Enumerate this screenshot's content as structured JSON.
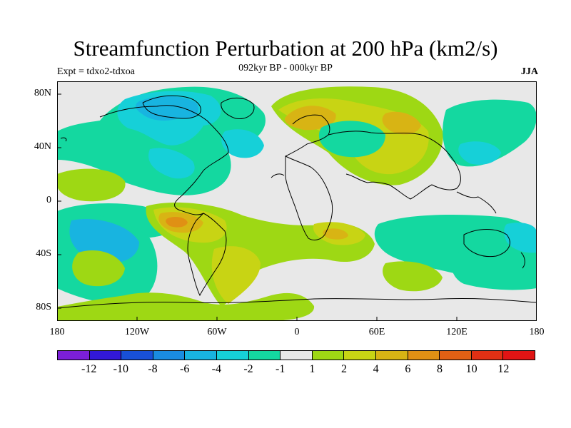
{
  "title": "Streamfunction Perturbation at 200 hPa (km2/s)",
  "subtitle": "092kyr BP - 000kyr BP",
  "left_label": "Expt = tdxo2-tdxoa",
  "right_label": "JJA",
  "lat_ticks": [
    "80N",
    "40N",
    "0",
    "40S",
    "80S"
  ],
  "lon_ticks": [
    "180",
    "120W",
    "60W",
    "0",
    "60E",
    "120E",
    "180"
  ],
  "colorbar": {
    "colors": [
      "#7b1fd8",
      "#3218d8",
      "#1850d8",
      "#1a8ce0",
      "#18b4e0",
      "#16d0d8",
      "#14d8a0",
      "#e8e8e8",
      "#9ed814",
      "#c8d414",
      "#d8b414",
      "#e09014",
      "#e06014",
      "#e03014",
      "#e01414"
    ],
    "labels": [
      "-12",
      "-10",
      "-8",
      "-6",
      "-4",
      "-2",
      "-1",
      "1",
      "2",
      "4",
      "6",
      "8",
      "10",
      "12"
    ]
  },
  "colors": {
    "background_field": "#e8e8e8",
    "coastline": "#000000"
  }
}
